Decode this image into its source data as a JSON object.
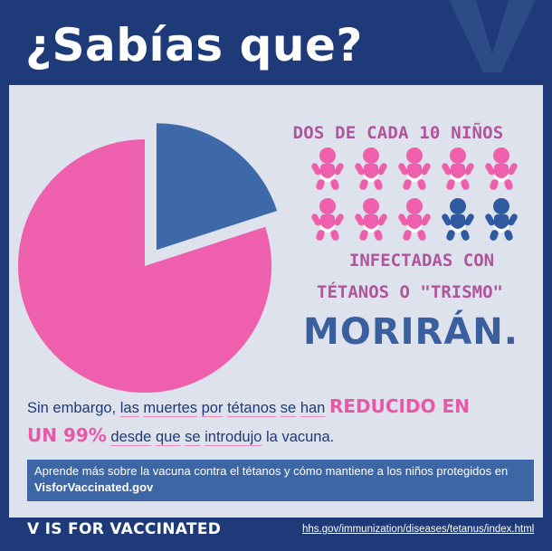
{
  "header": {
    "title": "¿Sabías que?"
  },
  "chart_data": {
    "type": "pie",
    "slices": [
      {
        "label": "",
        "value": 80,
        "color": "#ee5fae"
      },
      {
        "label": "",
        "value": 20,
        "color": "#3e69a8"
      }
    ]
  },
  "stat": {
    "line1": "DOS DE CADA 10 NIÑOS",
    "line2": "INFECTADAS CON",
    "line3": "TÉTANOS O \"TRISMO\"",
    "line4": "MORIRÁN."
  },
  "babies": {
    "total": 10,
    "highlighted": 2,
    "color_main": "#ee5fae",
    "color_highlight": "#2f5aa0",
    "icon": "baby-icon"
  },
  "body_text": {
    "p1": "Sin embargo, ",
    "p2": "las",
    "p3": "muertes",
    "p4": "por",
    "p5": "tétanos",
    "p6": "se",
    "p7": "han",
    "hl1": "REDUCIDO EN",
    "hl2": "UN 99%",
    "p8": "desde",
    "p9": "que",
    "p10": "se",
    "p11": "introdujo",
    "p12": "la vacuna."
  },
  "info": {
    "text": "Aprende más sobre la vacuna contra el tétanos y cómo mantiene a los niños protegidos en ",
    "link": "VisforVaccinated.gov"
  },
  "footer": {
    "brand": "V IS FOR VACCINATED",
    "url": "hhs.gov/immunization/diseases/tetanus/index.html"
  },
  "colors": {
    "navy": "#1e3a78",
    "panel": "#dde2ec",
    "pink": "#ee5fae",
    "blue": "#3e69a8",
    "mauve": "#b0559c"
  }
}
